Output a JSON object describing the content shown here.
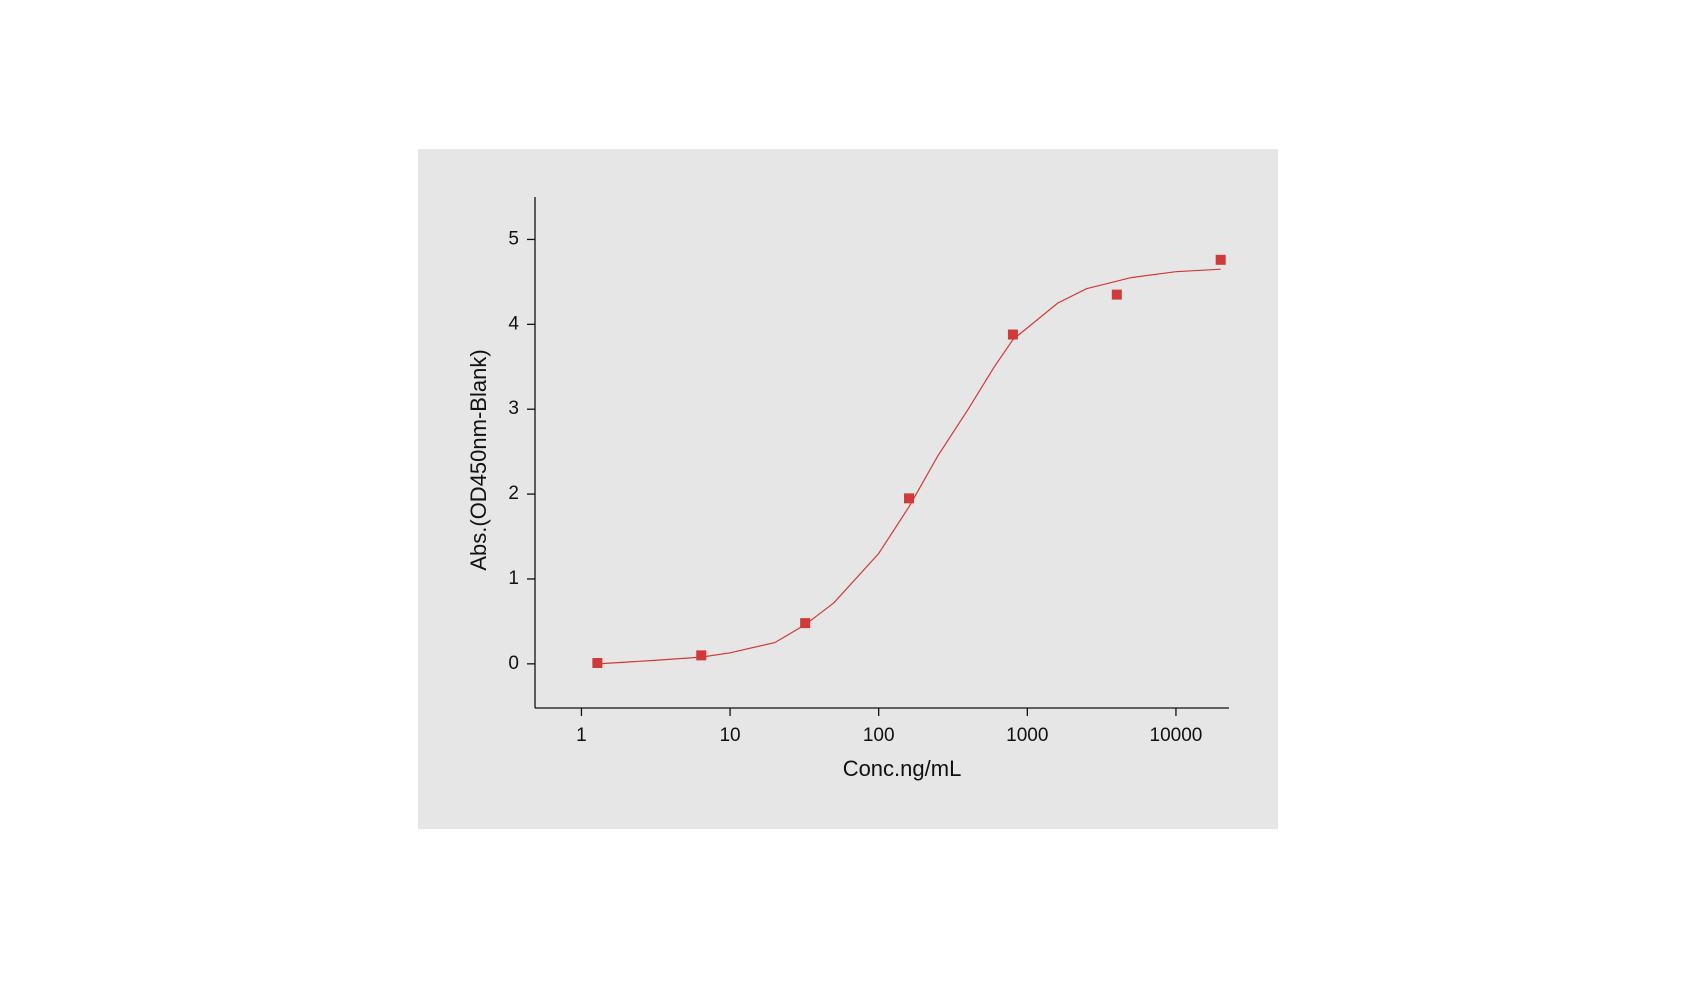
{
  "chart_data": {
    "type": "scatter",
    "x_label": "Conc.ng/mL",
    "y_label": "Abs.(OD450nm-Blank)",
    "x": [
      1.28,
      6.4,
      32,
      160,
      800,
      4000,
      20000
    ],
    "series": [
      {
        "color": "#d03a3a",
        "values": [
          0.01,
          0.1,
          0.48,
          1.95,
          3.88,
          4.35,
          4.76
        ]
      }
    ],
    "fit": {
      "color": "#d03a3a",
      "x": [
        1.28,
        3,
        6.4,
        10,
        20,
        32,
        50,
        100,
        160,
        250,
        400,
        600,
        800,
        1600,
        2500,
        5000,
        10000,
        20000
      ],
      "values": [
        0.0,
        0.04,
        0.08,
        0.13,
        0.25,
        0.46,
        0.72,
        1.3,
        1.85,
        2.45,
        3.0,
        3.5,
        3.82,
        4.25,
        4.42,
        4.55,
        4.62,
        4.65
      ]
    },
    "log_x": true,
    "xlim": [
      0.487,
      22750
    ],
    "xticks": [
      1,
      10,
      100,
      1000,
      10000
    ],
    "ylim": [
      -0.52,
      5.5
    ],
    "yticks": [
      0,
      1,
      2,
      3,
      4,
      5
    ]
  }
}
